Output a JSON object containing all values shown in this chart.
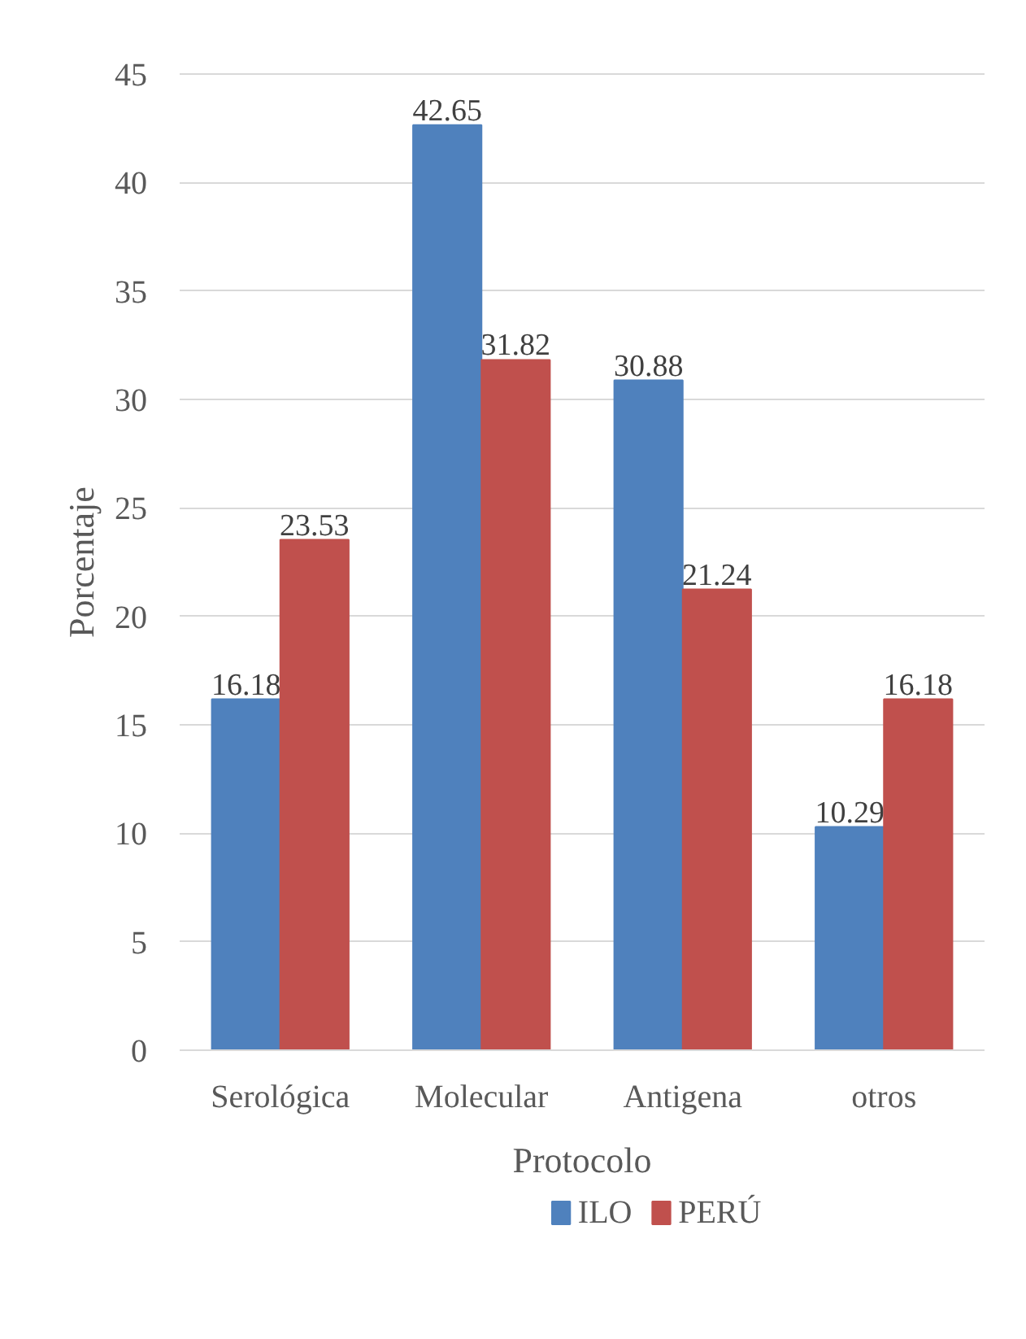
{
  "chart_data": {
    "type": "bar",
    "xlabel": "Protocolo",
    "ylabel": "Porcentaje",
    "categories": [
      "Serológica",
      "Molecular",
      "Antigena",
      "otros"
    ],
    "series": [
      {
        "name": "ILO",
        "color": "#4f81bd",
        "values": [
          16.18,
          42.65,
          30.88,
          10.29
        ]
      },
      {
        "name": "PERÚ",
        "color": "#c0504d",
        "values": [
          23.53,
          31.82,
          21.24,
          16.18
        ]
      }
    ],
    "ylim": [
      0,
      45
    ],
    "yticks": [
      0,
      5,
      10,
      15,
      20,
      25,
      30,
      35,
      40,
      45
    ],
    "grid": "y",
    "legend": "bottom",
    "data_labels": true
  }
}
